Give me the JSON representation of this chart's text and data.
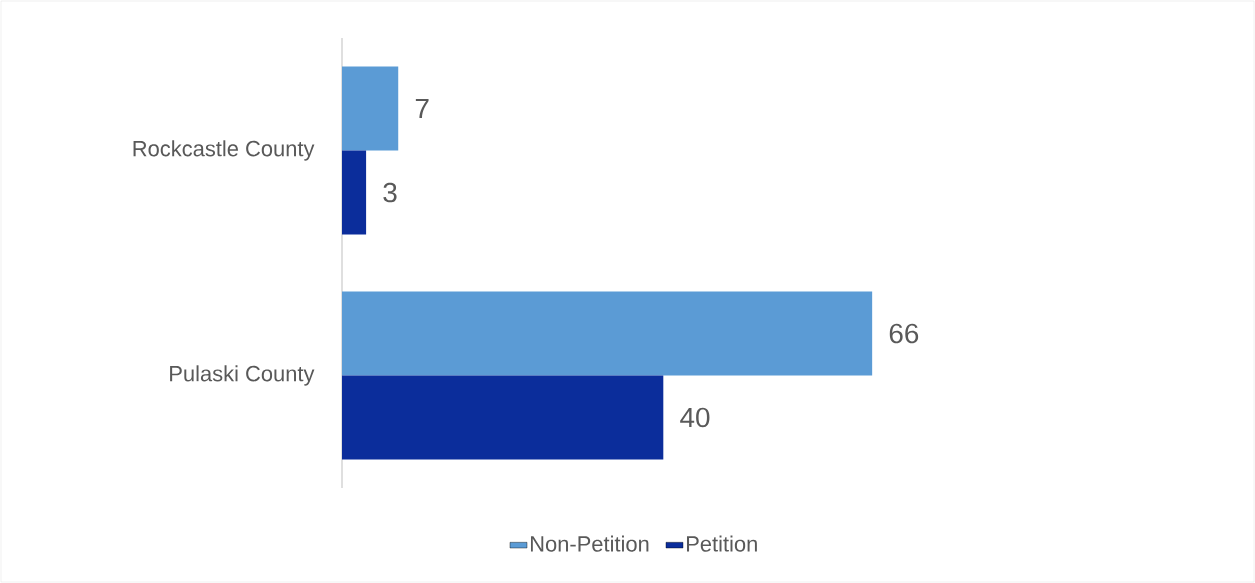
{
  "chart_data": {
    "type": "bar",
    "orientation": "horizontal",
    "categories": [
      "Rockcastle County",
      "Pulaski County"
    ],
    "series": [
      {
        "name": "Non-Petition",
        "color": "#5b9bd5",
        "values": [
          7,
          66
        ]
      },
      {
        "name": "Petition",
        "color": "#0b2d9b",
        "values": [
          3,
          40
        ]
      }
    ],
    "data_labels": true,
    "legend": "bottom"
  }
}
